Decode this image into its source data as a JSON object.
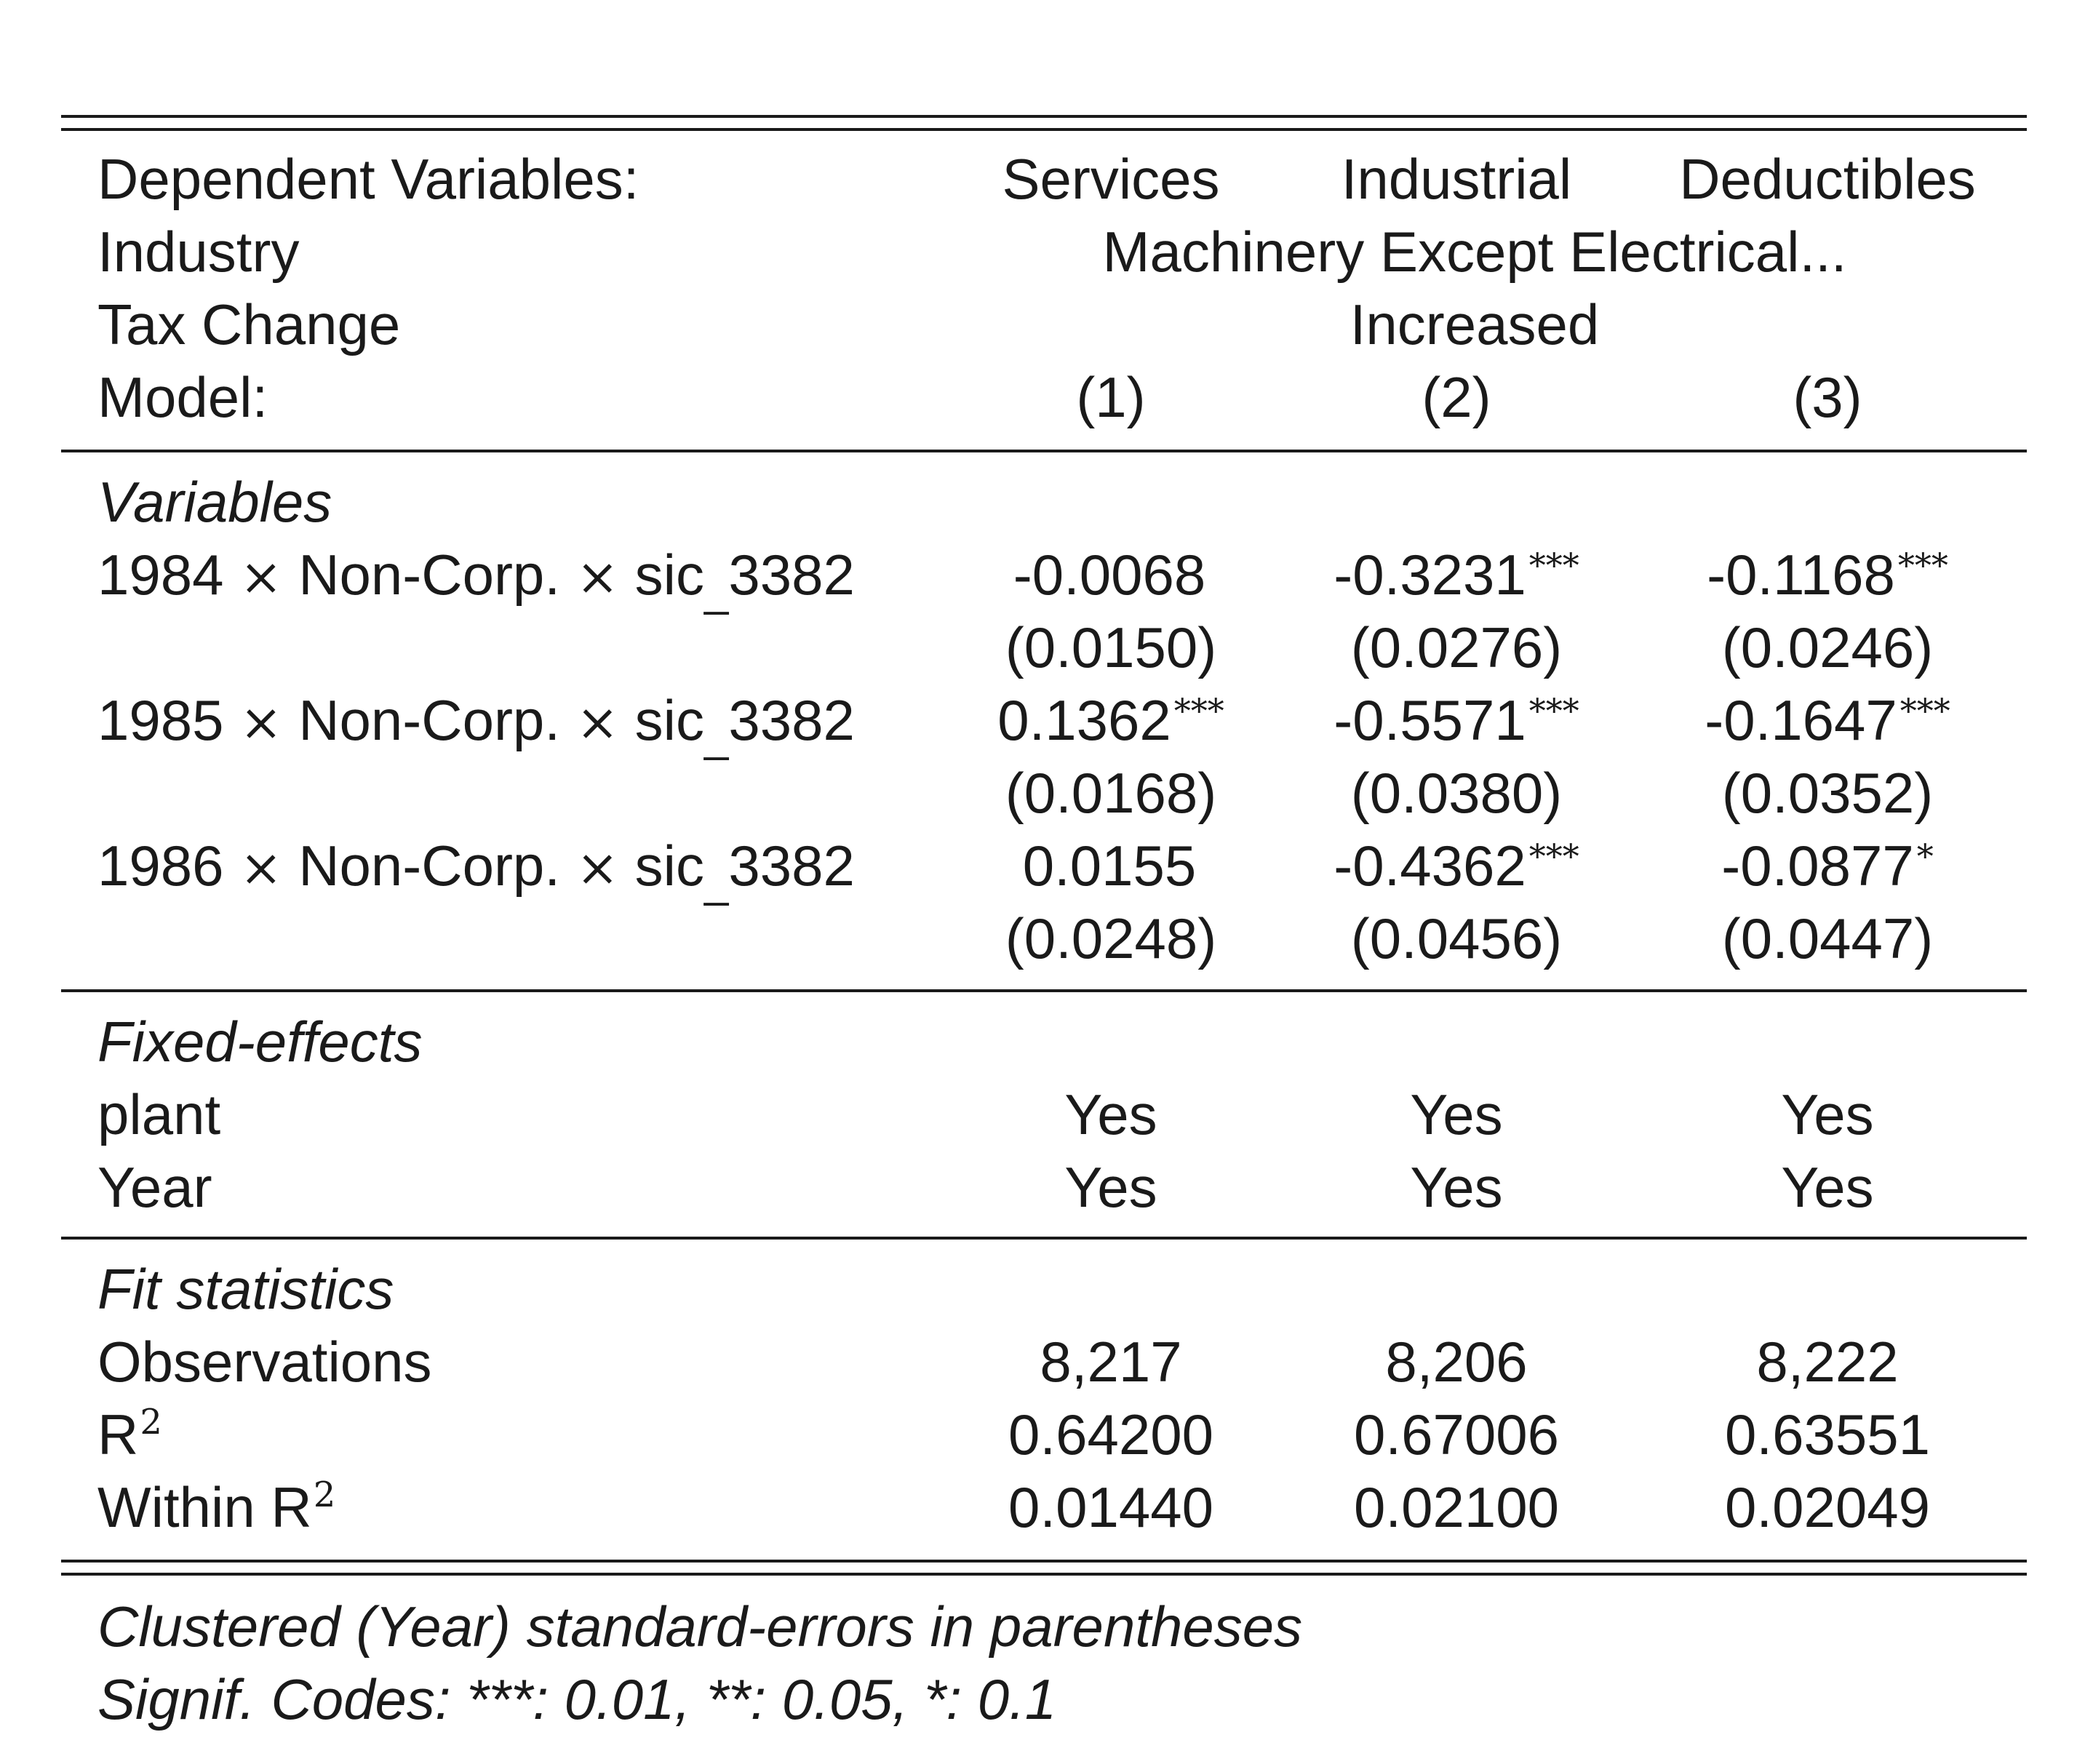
{
  "header": {
    "dependent_label": "Dependent Variables:",
    "dependent_values": [
      "Services",
      "Industrial",
      "Deductibles"
    ],
    "industry_label": "Industry",
    "industry_value": "Machinery Except Electrical...",
    "tax_label": "Tax Change",
    "tax_value": "Increased",
    "model_label": "Model:",
    "model_values": [
      "(1)",
      "(2)",
      "(3)"
    ]
  },
  "variables": {
    "section_title": "Variables",
    "times_symbol": "×",
    "rows": [
      {
        "year": "1984",
        "group": "Non-Corp.",
        "sic_prefix": "sic",
        "sic_sep": "_",
        "sic_code": "3382",
        "coef": [
          {
            "value": "-0.0068",
            "stars": ""
          },
          {
            "value": "-0.3231",
            "stars": "***"
          },
          {
            "value": "-0.1168",
            "stars": "***"
          }
        ],
        "se": [
          "(0.0150)",
          "(0.0276)",
          "(0.0246)"
        ]
      },
      {
        "year": "1985",
        "group": "Non-Corp.",
        "sic_prefix": "sic",
        "sic_sep": "_",
        "sic_code": "3382",
        "coef": [
          {
            "value": "0.1362",
            "stars": "***"
          },
          {
            "value": "-0.5571",
            "stars": "***"
          },
          {
            "value": "-0.1647",
            "stars": "***"
          }
        ],
        "se": [
          "(0.0168)",
          "(0.0380)",
          "(0.0352)"
        ]
      },
      {
        "year": "1986",
        "group": "Non-Corp.",
        "sic_prefix": "sic",
        "sic_sep": "_",
        "sic_code": "3382",
        "coef": [
          {
            "value": "0.0155",
            "stars": ""
          },
          {
            "value": "-0.4362",
            "stars": "***"
          },
          {
            "value": "-0.0877",
            "stars": "*"
          }
        ],
        "se": [
          "(0.0248)",
          "(0.0456)",
          "(0.0447)"
        ]
      }
    ]
  },
  "fixed_effects": {
    "section_title": "Fixed-effects",
    "rows": [
      {
        "label": "plant",
        "values": [
          "Yes",
          "Yes",
          "Yes"
        ]
      },
      {
        "label": "Year",
        "values": [
          "Yes",
          "Yes",
          "Yes"
        ]
      }
    ]
  },
  "fit_statistics": {
    "section_title": "Fit statistics",
    "observations": {
      "label": "Observations",
      "values": [
        "8,217",
        "8,206",
        "8,222"
      ]
    },
    "r2": {
      "label": "R",
      "sup": "2",
      "values": [
        "0.64200",
        "0.67006",
        "0.63551"
      ]
    },
    "within_r2": {
      "label": "Within R",
      "sup": "2",
      "values": [
        "0.01440",
        "0.02100",
        "0.02049"
      ]
    }
  },
  "notes": [
    "Clustered (Year) standard-errors in parentheses",
    "Signif. Codes: ***: 0.01, **: 0.05, *: 0.1"
  ]
}
